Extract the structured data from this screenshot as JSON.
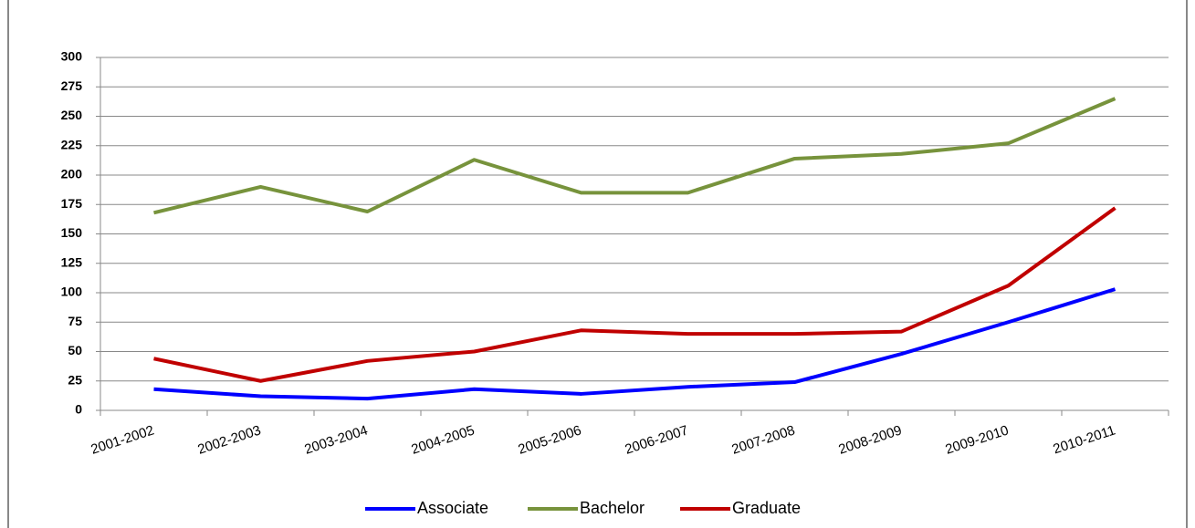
{
  "chart_data": {
    "type": "line",
    "categories": [
      "2001-2002",
      "2002-2003",
      "2003-2004",
      "2004-2005",
      "2005-2006",
      "2006-2007",
      "2007-2008",
      "2008-2009",
      "2009-2010",
      "2010-2011"
    ],
    "series": [
      {
        "name": "Associate",
        "color": "#0000ff",
        "values": [
          18,
          12,
          10,
          18,
          14,
          20,
          24,
          48,
          75,
          103
        ]
      },
      {
        "name": "Bachelor",
        "color": "#77933c",
        "values": [
          168,
          190,
          169,
          213,
          185,
          185,
          214,
          218,
          227,
          265
        ]
      },
      {
        "name": "Graduate",
        "color": "#c00000",
        "values": [
          44,
          25,
          42,
          50,
          68,
          65,
          65,
          67,
          106,
          172
        ]
      }
    ],
    "ylim": [
      0,
      300
    ],
    "yticks": [
      0,
      25,
      50,
      75,
      100,
      125,
      150,
      175,
      200,
      225,
      250,
      275,
      300
    ],
    "grid": true,
    "legend": "bottom"
  }
}
